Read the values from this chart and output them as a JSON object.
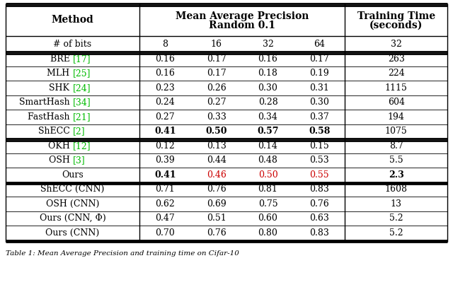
{
  "header_row1_col0": "Method",
  "header_row1_map": "Mean Average Precision\nRandom 0.1",
  "header_row1_tt": "Training Time\n(seconds)",
  "header_row2": [
    "# of bits",
    "8",
    "16",
    "32",
    "64",
    "32"
  ],
  "rows": [
    [
      "BRE [17]",
      "0.16",
      "0.17",
      "0.16",
      "0.17",
      "263"
    ],
    [
      "MLH [25]",
      "0.16",
      "0.17",
      "0.18",
      "0.19",
      "224"
    ],
    [
      "SHK [24]",
      "0.23",
      "0.26",
      "0.30",
      "0.31",
      "1115"
    ],
    [
      "SmartHash [34]",
      "0.24",
      "0.27",
      "0.28",
      "0.30",
      "604"
    ],
    [
      "FastHash [21]",
      "0.27",
      "0.33",
      "0.34",
      "0.37",
      "194"
    ],
    [
      "ShECC [2]",
      "0.41",
      "0.50",
      "0.57",
      "0.58",
      "1075"
    ],
    [
      "OKH [12]",
      "0.12",
      "0.13",
      "0.14",
      "0.15",
      "8.7"
    ],
    [
      "OSH [3]",
      "0.39",
      "0.44",
      "0.48",
      "0.53",
      "5.5"
    ],
    [
      "Ours",
      "0.41",
      "0.46",
      "0.50",
      "0.55",
      "2.3"
    ],
    [
      "ShECC (CNN)",
      "0.71",
      "0.76",
      "0.81",
      "0.83",
      "1608"
    ],
    [
      "OSH (CNN)",
      "0.62",
      "0.69",
      "0.75",
      "0.76",
      "13"
    ],
    [
      "Ours (CNN, Φ)",
      "0.47",
      "0.51",
      "0.60",
      "0.63",
      "5.2"
    ],
    [
      "Ours (CNN)",
      "0.70",
      "0.76",
      "0.80",
      "0.83",
      "5.2"
    ]
  ],
  "method_green_refs": {
    "BRE [17]": 4,
    "MLH [25]": 4,
    "SHK [24]": 4,
    "SmartHash [34]": 11,
    "FastHash [21]": 9,
    "ShECC [2]": 6,
    "OKH [12]": 4,
    "OSH [3]": 4
  },
  "shecc_row": 5,
  "ours_row": 8,
  "green_color": "#00bb00",
  "red_color": "#cc0000"
}
